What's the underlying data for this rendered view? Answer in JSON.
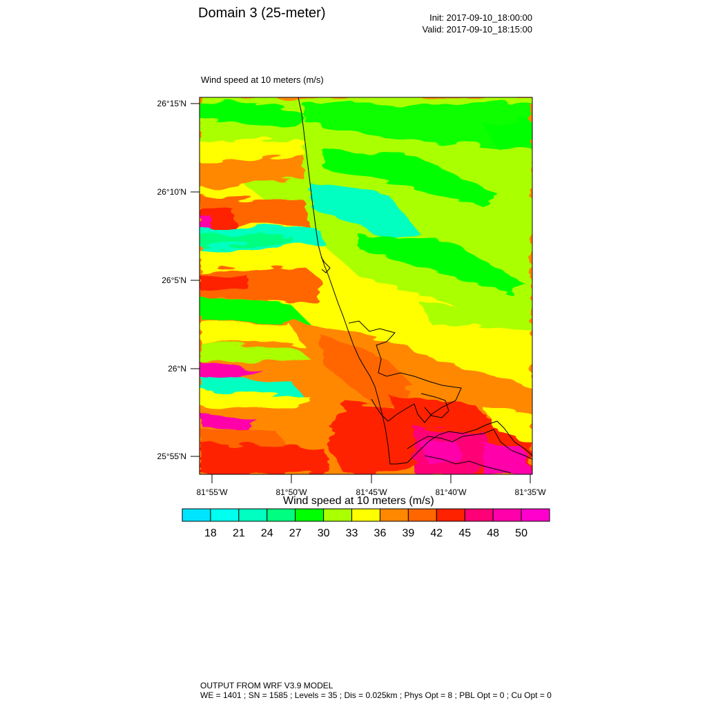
{
  "header": {
    "title": "Domain 3 (25-meter)",
    "init": "Init: 2017-09-10_18:00:00",
    "valid": "Valid: 2017-09-10_18:15:00"
  },
  "plot": {
    "title": "Wind speed at 10 meters   (m/s)",
    "lat_labels": [
      "26°15'N",
      "26°10'N",
      "26°5'N",
      "26°N",
      "25°55'N"
    ],
    "lon_labels": [
      "81°55'W",
      "81°50'W",
      "81°45'W",
      "81°40'W",
      "81°35'W"
    ]
  },
  "colorbar": {
    "title": "Wind speed at 10 meters  (m/s)",
    "labels": [
      "18",
      "21",
      "24",
      "27",
      "30",
      "33",
      "36",
      "39",
      "42",
      "45",
      "48",
      "50"
    ],
    "colors": [
      "#00e5ff",
      "#00ffee",
      "#00ffc0",
      "#00ff80",
      "#00ff00",
      "#aaff00",
      "#ffff00",
      "#ff8800",
      "#ff6600",
      "#ff2200",
      "#ff0077",
      "#ff00aa",
      "#ff00cc"
    ]
  },
  "footer": {
    "line1": "OUTPUT FROM WRF V3.9 MODEL",
    "line2": "WE = 1401 ; SN = 1585 ; Levels = 35 ; Dis = 0.025km ; Phys Opt = 8 ; PBL Opt = 0 ; Cu Opt = 0"
  }
}
